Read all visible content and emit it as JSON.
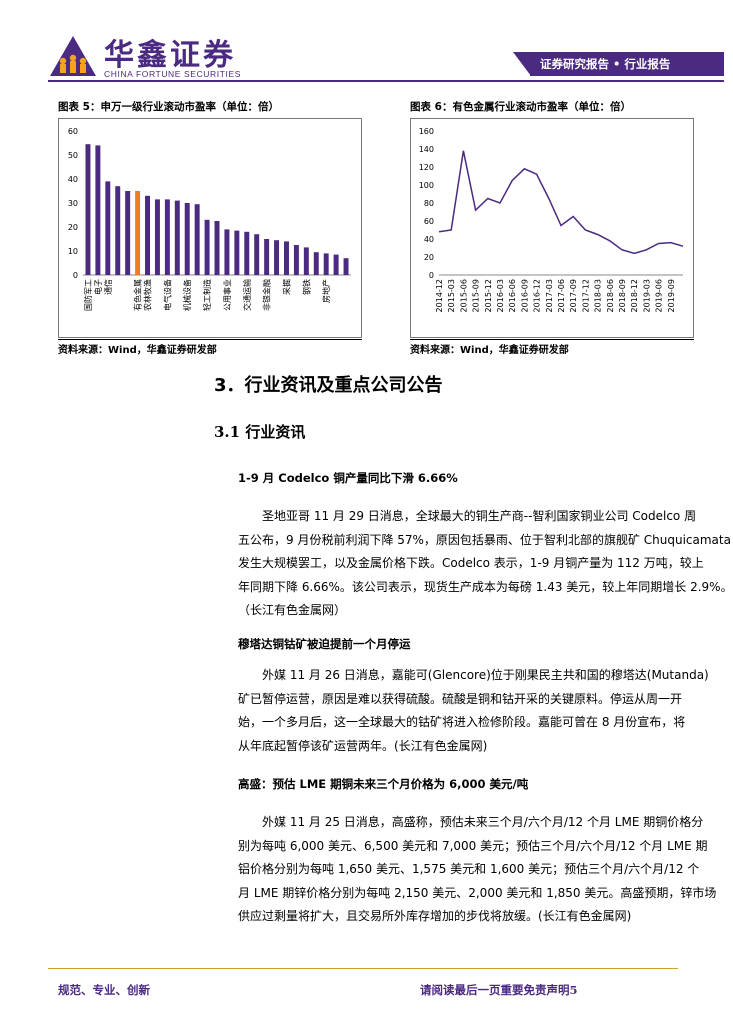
{
  "header": {
    "brand_cn": "华鑫证券",
    "brand_en": "CHINA FORTUNE SECURITIES",
    "banner": "证券研究报告 • 行业报告",
    "brand_color": "#4b2a82"
  },
  "figure5": {
    "caption": "图表 5：申万一级行业滚动市盈率（单位：倍）",
    "source": "资料来源：Wind，华鑫证券研发部"
  },
  "figure6": {
    "caption": "图表 6：有色金属行业滚动市盈率（单位：倍）",
    "source": "资料来源：Wind，华鑫证券研发部"
  },
  "chart_data": [
    {
      "type": "bar",
      "title": "",
      "ylim": [
        0,
        60
      ],
      "yticks": [
        0,
        10,
        20,
        30,
        40,
        50,
        60
      ],
      "bar_color": "#4b2a82",
      "highlight_color": "#f07e1e",
      "highlight_index": 5,
      "values": [
        54.5,
        54,
        39,
        37,
        35,
        35,
        33,
        31.5,
        31.5,
        31,
        30,
        29.5,
        23,
        22.5,
        19,
        18.5,
        18,
        17,
        15,
        14.5,
        14,
        12.5,
        11.5,
        9.5,
        9,
        8.5,
        7
      ],
      "tick_labels": [
        {
          "index": 0,
          "label": "国防军工"
        },
        {
          "index": 1,
          "label": "电子"
        },
        {
          "index": 2,
          "label": "通信"
        },
        {
          "index": 5,
          "label": "有色金属"
        },
        {
          "index": 6,
          "label": "农林牧渔"
        },
        {
          "index": 8,
          "label": "电气设备"
        },
        {
          "index": 10,
          "label": "机械设备"
        },
        {
          "index": 12,
          "label": "轻工制造"
        },
        {
          "index": 14,
          "label": "公用事业"
        },
        {
          "index": 16,
          "label": "交通运输"
        },
        {
          "index": 18,
          "label": "非银金融"
        },
        {
          "index": 20,
          "label": "采掘"
        },
        {
          "index": 22,
          "label": "钢铁"
        },
        {
          "index": 24,
          "label": "房地产"
        }
      ]
    },
    {
      "type": "line",
      "title": "",
      "ylim": [
        0,
        160
      ],
      "yticks": [
        0,
        20,
        40,
        60,
        80,
        100,
        120,
        140,
        160
      ],
      "line_color": "#4b2a82",
      "x": [
        "2014-12",
        "2015-03",
        "2015-06",
        "2015-09",
        "2015-12",
        "2016-03",
        "2016-06",
        "2016-09",
        "2016-12",
        "2017-03",
        "2017-06",
        "2017-09",
        "2017-12",
        "2018-03",
        "2018-06",
        "2018-09",
        "2018-12",
        "2019-03",
        "2019-06",
        "2019-09",
        "2019-11"
      ],
      "values": [
        48,
        50,
        138,
        72,
        85,
        80,
        105,
        118,
        112,
        85,
        55,
        65,
        50,
        45,
        38,
        28,
        24,
        28,
        35,
        36,
        32
      ],
      "tick_labels": [
        "2014-12",
        "2015-03",
        "2015-06",
        "2015-09",
        "2015-12",
        "2016-03",
        "2016-06",
        "2016-09",
        "2016-12",
        "2017-03",
        "2017-06",
        "2017-09",
        "2017-12",
        "2018-03",
        "2018-06",
        "2018-09",
        "2018-12",
        "2019-03",
        "2019-06",
        "2019-09"
      ]
    }
  ],
  "section": {
    "title": "3．行业资讯及重点公司公告",
    "subtitle": "3.1 行业资讯"
  },
  "news": [
    {
      "title": "1-9 月 Codelco 铜产量同比下滑 6.66%",
      "lines": [
        "圣地亚哥 11 月 29 日消息，全球最大的铜生产商--智利国家铜业公司 Codelco 周",
        "五公布，9 月份税前利润下降 57%，原因包括暴雨、位于智利北部的旗舰矿 Chuquicamata",
        "发生大规模罢工，以及金属价格下跌。Codelco 表示，1-9 月铜产量为 112 万吨，较上",
        "年同期下降 6.66%。该公司表示，现货生产成本为每磅 1.43 美元，较上年同期增长 2.9%。",
        "（长江有色金属网）"
      ]
    },
    {
      "title": "穆塔达铜钴矿被迫提前一个月停运",
      "lines": [
        "外媒 11 月 26 日消息，嘉能可(Glencore)位于刚果民主共和国的穆塔达(Mutanda)",
        "矿已暂停运营，原因是难以获得硫酸。硫酸是铜和钴开采的关键原料。停运从周一开",
        "始，一个多月后，这一全球最大的钴矿将进入检修阶段。嘉能可曾在 8 月份宣布，将",
        "从年底起暂停该矿运营两年。(长江有色金属网)"
      ]
    },
    {
      "title": "高盛：预估 LME 期铜未来三个月价格为 6,000 美元/吨",
      "lines": [
        "外媒 11 月 25 日消息，高盛称，预估未来三个月/六个月/12 个月 LME 期铜价格分",
        "别为每吨 6,000 美元、6,500 美元和 7,000 美元；预估三个月/六个月/12 个月 LME 期",
        "铝价格分别为每吨 1,650 美元、1,575 美元和 1,600 美元；预估三个月/六个月/12 个",
        "月 LME 期锌价格分别为每吨 2,150 美元、2,000 美元和 1,850 美元。高盛预期，锌市场",
        "供应过剩量将扩大，且交易所外库存增加的步伐将放缓。(长江有色金属网)"
      ]
    }
  ],
  "footer": {
    "left": "规范、专业、创新",
    "right": "请阅读最后一页重要免责声明5",
    "rule_color": "#c9a227"
  }
}
